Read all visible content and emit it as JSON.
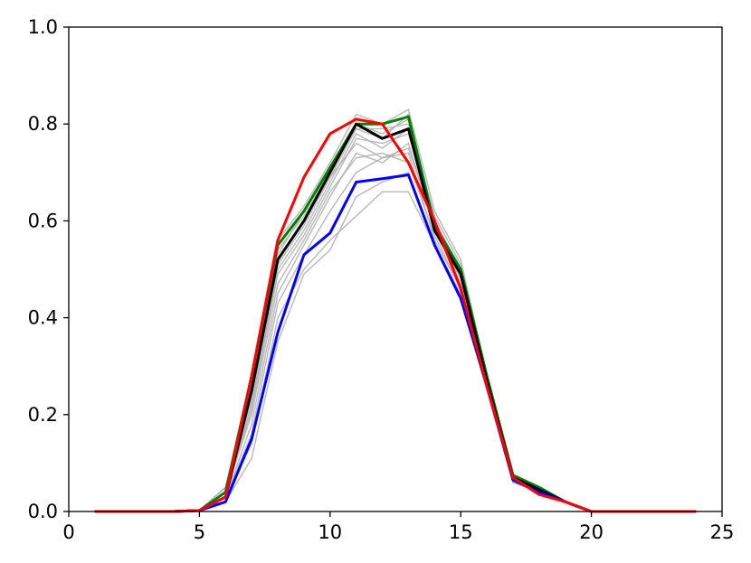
{
  "chart_data": {
    "type": "line",
    "title": "",
    "xlabel": "",
    "ylabel": "",
    "xlim": [
      0,
      25
    ],
    "ylim": [
      0,
      1.0
    ],
    "grid": false,
    "x_ticks": [
      0,
      5,
      10,
      15,
      20,
      25
    ],
    "x_tick_labels": [
      "0",
      "5",
      "10",
      "15",
      "20",
      "25"
    ],
    "y_ticks": [
      0.0,
      0.2,
      0.4,
      0.6,
      0.8,
      1.0
    ],
    "y_tick_labels": [
      "0.0",
      "0.2",
      "0.4",
      "0.6",
      "0.8",
      "1.0"
    ],
    "x": [
      1,
      2,
      3,
      4,
      5,
      6,
      7,
      8,
      9,
      10,
      11,
      12,
      13,
      14,
      15,
      16,
      17,
      18,
      19,
      20,
      21,
      22,
      23,
      24
    ],
    "background_color": "#b0b0b0",
    "background_series": [
      {
        "values": [
          0,
          0,
          0,
          0,
          0.002,
          0.05,
          0.26,
          0.54,
          0.61,
          0.7,
          0.8,
          0.78,
          0.81,
          0.6,
          0.5,
          0.28,
          0.07,
          0.04,
          0.02,
          0,
          0,
          0,
          0,
          0
        ]
      },
      {
        "values": [
          0,
          0,
          0,
          0,
          0.002,
          0.04,
          0.22,
          0.5,
          0.58,
          0.68,
          0.78,
          0.75,
          0.79,
          0.58,
          0.48,
          0.27,
          0.07,
          0.04,
          0.02,
          0,
          0,
          0,
          0,
          0
        ]
      },
      {
        "values": [
          0,
          0,
          0,
          0,
          0.002,
          0.03,
          0.18,
          0.45,
          0.55,
          0.65,
          0.74,
          0.72,
          0.76,
          0.58,
          0.47,
          0.26,
          0.07,
          0.04,
          0.02,
          0,
          0,
          0,
          0,
          0
        ]
      },
      {
        "values": [
          0,
          0,
          0,
          0,
          0.002,
          0.02,
          0.11,
          0.35,
          0.49,
          0.54,
          0.65,
          0.68,
          0.7,
          0.55,
          0.44,
          0.25,
          0.06,
          0.04,
          0.02,
          0,
          0,
          0,
          0,
          0
        ]
      },
      {
        "values": [
          0,
          0,
          0,
          0,
          0.002,
          0.03,
          0.14,
          0.4,
          0.5,
          0.56,
          0.61,
          0.66,
          0.66,
          0.55,
          0.45,
          0.25,
          0.06,
          0.04,
          0.02,
          0,
          0,
          0,
          0,
          0
        ]
      },
      {
        "values": [
          0,
          0,
          0,
          0,
          0.002,
          0.05,
          0.27,
          0.56,
          0.63,
          0.72,
          0.82,
          0.8,
          0.83,
          0.62,
          0.52,
          0.28,
          0.07,
          0.04,
          0.02,
          0,
          0,
          0,
          0,
          0
        ]
      },
      {
        "values": [
          0,
          0,
          0,
          0,
          0.002,
          0.04,
          0.24,
          0.52,
          0.6,
          0.69,
          0.76,
          0.73,
          0.75,
          0.59,
          0.49,
          0.27,
          0.07,
          0.04,
          0.02,
          0,
          0,
          0,
          0,
          0
        ]
      },
      {
        "values": [
          0,
          0,
          0,
          0,
          0.002,
          0.04,
          0.2,
          0.47,
          0.56,
          0.66,
          0.73,
          0.74,
          0.72,
          0.57,
          0.46,
          0.26,
          0.07,
          0.04,
          0.02,
          0,
          0,
          0,
          0,
          0
        ]
      },
      {
        "values": [
          0,
          0,
          0,
          0,
          0.002,
          0.05,
          0.25,
          0.53,
          0.62,
          0.71,
          0.79,
          0.79,
          0.8,
          0.61,
          0.51,
          0.28,
          0.07,
          0.04,
          0.02,
          0,
          0,
          0,
          0,
          0
        ]
      },
      {
        "values": [
          0,
          0,
          0,
          0,
          0.002,
          0.03,
          0.16,
          0.43,
          0.53,
          0.62,
          0.7,
          0.73,
          0.74,
          0.56,
          0.46,
          0.26,
          0.06,
          0.04,
          0.02,
          0,
          0,
          0,
          0,
          0
        ]
      },
      {
        "values": [
          0,
          0,
          0,
          0,
          0.002,
          0.04,
          0.21,
          0.49,
          0.57,
          0.67,
          0.77,
          0.76,
          0.78,
          0.6,
          0.49,
          0.27,
          0.07,
          0.04,
          0.02,
          0,
          0,
          0,
          0,
          0
        ]
      },
      {
        "values": [
          0,
          0,
          0,
          0,
          0.002,
          0.05,
          0.23,
          0.51,
          0.59,
          0.69,
          0.79,
          0.77,
          0.82,
          0.6,
          0.5,
          0.27,
          0.07,
          0.04,
          0.02,
          0,
          0,
          0,
          0,
          0
        ]
      }
    ],
    "series": [
      {
        "color": "#008000",
        "values": [
          0,
          0,
          0,
          0,
          0.002,
          0.04,
          0.28,
          0.55,
          0.62,
          0.71,
          0.8,
          0.8,
          0.815,
          0.59,
          0.5,
          0.28,
          0.075,
          0.05,
          0.02,
          0,
          0,
          0,
          0,
          0
        ]
      },
      {
        "color": "#000000",
        "values": [
          0,
          0,
          0,
          0,
          0.002,
          0.03,
          0.25,
          0.52,
          0.6,
          0.7,
          0.8,
          0.77,
          0.79,
          0.58,
          0.49,
          0.27,
          0.07,
          0.045,
          0.02,
          0,
          0,
          0,
          0,
          0
        ]
      },
      {
        "color": "#0000ff",
        "values": [
          0,
          0,
          0,
          0,
          0.002,
          0.02,
          0.15,
          0.37,
          0.53,
          0.575,
          0.68,
          0.687,
          0.695,
          0.55,
          0.44,
          0.26,
          0.065,
          0.04,
          0.02,
          0,
          0,
          0,
          0,
          0
        ]
      },
      {
        "color": "#ff0000",
        "values": [
          0,
          0,
          0,
          0,
          0.002,
          0.03,
          0.28,
          0.56,
          0.69,
          0.78,
          0.81,
          0.8,
          0.72,
          0.6,
          0.46,
          0.26,
          0.07,
          0.035,
          0.02,
          0,
          0,
          0,
          0,
          0
        ]
      }
    ]
  }
}
